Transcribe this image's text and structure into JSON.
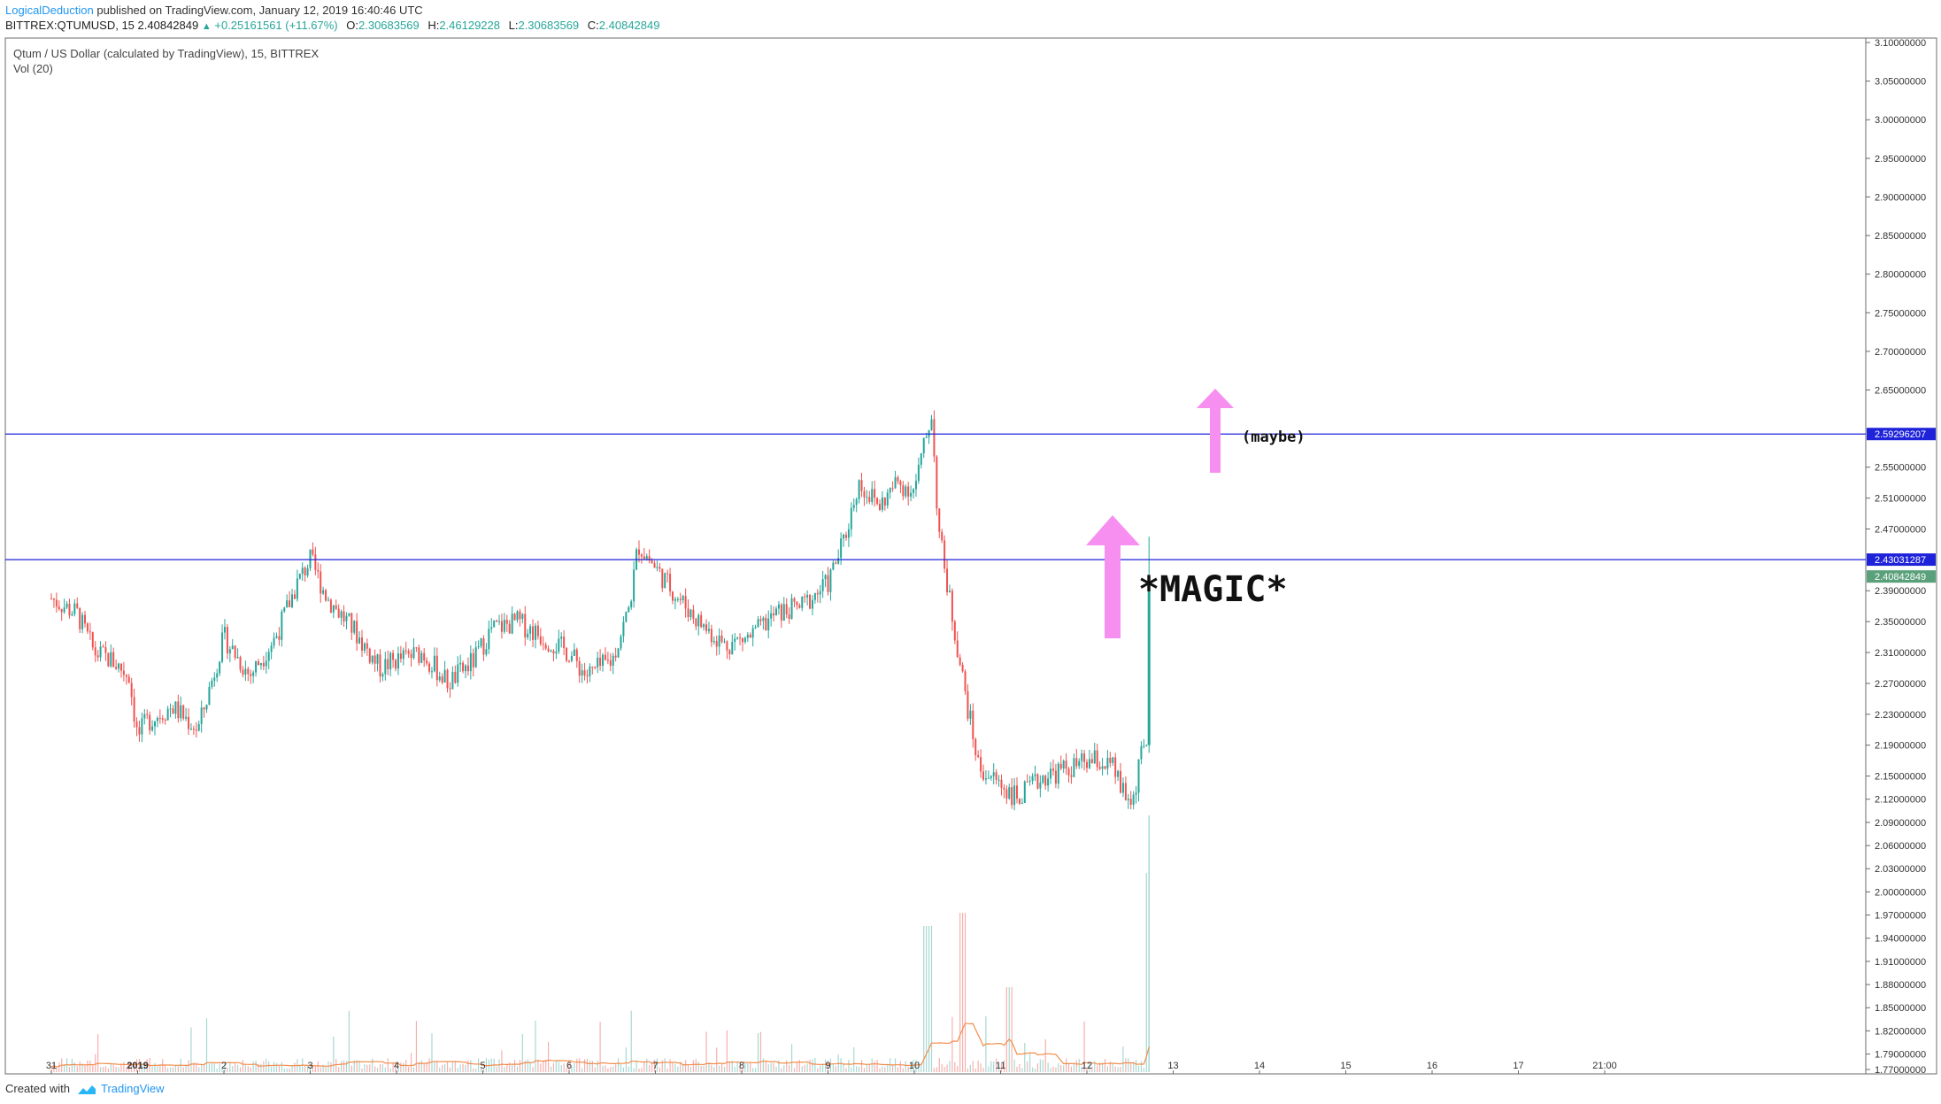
{
  "header": {
    "author": "LogicalDeduction",
    "published": "published on TradingView.com, January 12, 2019 16:40:46 UTC",
    "symbol": "BITTREX:QTUMUSD, 15",
    "last": "2.40842849",
    "change": "+0.25161561 (+11.67%)",
    "o_label": "O:",
    "o_val": "2.30683569",
    "h_label": "H:",
    "h_val": "2.46129228",
    "l_label": "L:",
    "l_val": "2.30683569",
    "c_label": "C:",
    "c_val": "2.40842849"
  },
  "legend": {
    "title": "Qtum / US Dollar (calculated by TradingView), 15, BITTREX",
    "volume": "Vol (20)"
  },
  "annotations": {
    "magic": "*MAGIC*",
    "maybe": "(maybe)"
  },
  "footer": {
    "created_with": "Created with",
    "brand": "TradingView"
  },
  "colors": {
    "up": "#26a69a",
    "down": "#ef5350",
    "hline": "#1e22d8",
    "arrow": "#f78ff0",
    "last_price_tag": "#5aa07a",
    "vol_ma": "#f38d4b"
  },
  "chart_data": {
    "type": "candlestick",
    "title": "Qtum / US Dollar (calculated by TradingView), 15, BITTREX",
    "x_ticks": [
      "31",
      "2019",
      "2",
      "3",
      "4",
      "5",
      "6",
      "7",
      "8",
      "9",
      "10",
      "11",
      "12",
      "13",
      "14",
      "15",
      "16",
      "17",
      "21:00"
    ],
    "y_ticks": [
      "3.10000000",
      "3.05000000",
      "3.00000000",
      "2.95000000",
      "2.90000000",
      "2.85000000",
      "2.80000000",
      "2.75000000",
      "2.70000000",
      "2.65000000",
      "2.55000000",
      "2.51000000",
      "2.47000000",
      "2.39000000",
      "2.35000000",
      "2.31000000",
      "2.27000000",
      "2.23000000",
      "2.19000000",
      "2.15000000",
      "2.12000000",
      "2.09000000",
      "2.06000000",
      "2.03000000",
      "2.00000000",
      "1.97000000",
      "1.94000000",
      "1.91000000",
      "1.88000000",
      "1.85000000",
      "1.82000000",
      "1.79000000",
      "1.77000000"
    ],
    "ylim": [
      1.77,
      3.1
    ],
    "horizontal_lines": [
      {
        "value": 2.59296207,
        "label": "2.59296207"
      },
      {
        "value": 2.43031287,
        "label": "2.43031287"
      }
    ],
    "last_price": {
      "value": 2.40842849,
      "label": "2.40842849"
    },
    "price_path": [
      [
        0.0,
        2.38
      ],
      [
        0.3,
        2.36
      ],
      [
        0.5,
        2.31
      ],
      [
        0.7,
        2.3
      ],
      [
        0.9,
        2.28
      ],
      [
        1.0,
        2.2
      ],
      [
        1.1,
        2.22
      ],
      [
        1.4,
        2.24
      ],
      [
        1.7,
        2.21
      ],
      [
        2.0,
        2.33
      ],
      [
        2.3,
        2.28
      ],
      [
        2.6,
        2.33
      ],
      [
        2.85,
        2.4
      ],
      [
        3.0,
        2.43
      ],
      [
        3.2,
        2.38
      ],
      [
        3.5,
        2.34
      ],
      [
        3.8,
        2.29
      ],
      [
        4.0,
        2.3
      ],
      [
        4.3,
        2.31
      ],
      [
        4.6,
        2.27
      ],
      [
        4.9,
        2.3
      ],
      [
        5.1,
        2.34
      ],
      [
        5.4,
        2.35
      ],
      [
        5.7,
        2.33
      ],
      [
        6.0,
        2.31
      ],
      [
        6.2,
        2.28
      ],
      [
        6.5,
        2.3
      ],
      [
        6.7,
        2.37
      ],
      [
        6.8,
        2.45
      ],
      [
        7.0,
        2.42
      ],
      [
        7.2,
        2.39
      ],
      [
        7.5,
        2.35
      ],
      [
        7.8,
        2.32
      ],
      [
        8.1,
        2.33
      ],
      [
        8.4,
        2.36
      ],
      [
        8.7,
        2.37
      ],
      [
        9.0,
        2.4
      ],
      [
        9.2,
        2.46
      ],
      [
        9.35,
        2.53
      ],
      [
        9.6,
        2.5
      ],
      [
        9.8,
        2.53
      ],
      [
        10.0,
        2.52
      ],
      [
        10.2,
        2.62
      ],
      [
        10.28,
        2.47
      ],
      [
        10.45,
        2.35
      ],
      [
        10.6,
        2.25
      ],
      [
        10.75,
        2.16
      ],
      [
        11.0,
        2.14
      ],
      [
        11.2,
        2.12
      ],
      [
        11.5,
        2.15
      ],
      [
        11.8,
        2.16
      ],
      [
        12.1,
        2.17
      ],
      [
        12.3,
        2.16
      ],
      [
        12.45,
        2.12
      ],
      [
        12.55,
        2.12
      ],
      [
        12.6,
        2.17
      ],
      [
        12.7,
        2.19
      ],
      [
        12.72,
        2.41
      ]
    ],
    "volume_baseline": 0.0,
    "volume_spikes": [
      {
        "day": 10.15,
        "relative": 0.55
      },
      {
        "day": 10.55,
        "relative": 0.6
      },
      {
        "day": 11.1,
        "relative": 0.32
      },
      {
        "day": 12.72,
        "relative": 0.75
      }
    ]
  }
}
